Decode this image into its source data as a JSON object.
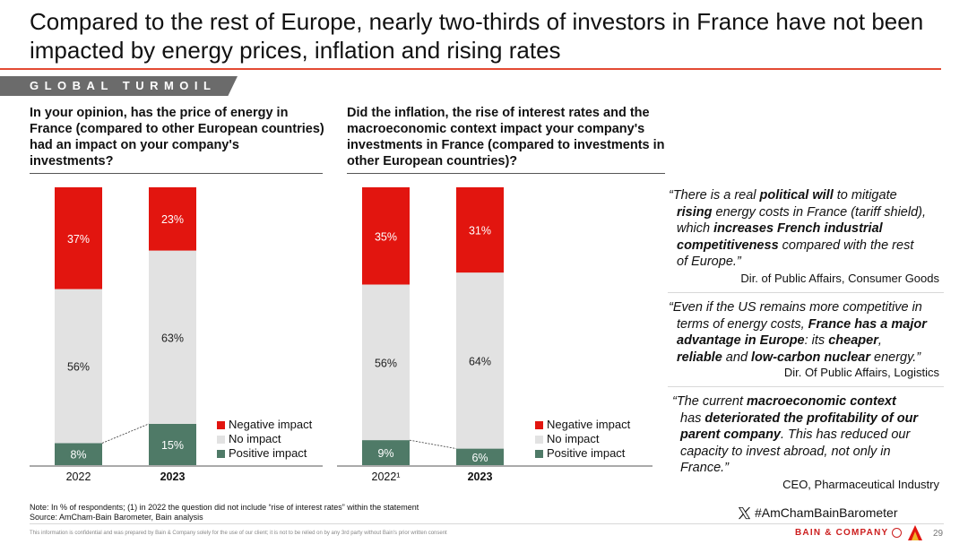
{
  "page": {
    "title": "Compared to the rest of Europe, nearly two-thirds of investors in France have not been impacted by energy prices, inflation and rising rates",
    "section_tag": "GLOBAL TURMOIL",
    "note": "Note: In % of respondents; (1) in 2022 the question did not include “rise of interest rates” within the statement",
    "source": "Source: AmCham-Bain Barometer, Bain analysis",
    "disclaimer": "This information is confidential and was prepared by Bain & Company solely for the use of our client; it is not to be relied on by any 3rd party without Bain's prior written consent",
    "hashtag": "#AmChamBainBarometer",
    "brand": "BAIN & COMPANY",
    "page_number": "29"
  },
  "colors": {
    "negative": "#e2150f",
    "no_impact": "#e2e2e2",
    "positive": "#4f7a67",
    "accent_rule": "#e34a33",
    "tag_bg": "#6b6b6b"
  },
  "chart_data": [
    {
      "type": "bar",
      "stacked": true,
      "title": "In your opinion, has the price of energy in France (compared to other European countries) had an impact on your company's investments?",
      "categories": [
        "2022",
        "2023"
      ],
      "categories_bold": [
        false,
        true
      ],
      "series": [
        {
          "name": "Positive impact",
          "values": [
            8,
            15
          ]
        },
        {
          "name": "No impact",
          "values": [
            56,
            63
          ]
        },
        {
          "name": "Negative impact",
          "values": [
            37,
            23
          ]
        }
      ],
      "value_suffix": "%",
      "legend_order": [
        "Negative impact",
        "No impact",
        "Positive impact"
      ],
      "legend_position": "right"
    },
    {
      "type": "bar",
      "stacked": true,
      "title": "Did the inflation, the rise of interest rates and the macroeconomic context impact your company's investments in France (compared to investments in other European countries)?",
      "categories": [
        "2022¹",
        "2023"
      ],
      "categories_bold": [
        false,
        true
      ],
      "series": [
        {
          "name": "Positive impact",
          "values": [
            9,
            6
          ]
        },
        {
          "name": "No impact",
          "values": [
            56,
            64
          ]
        },
        {
          "name": "Negative impact",
          "values": [
            35,
            31
          ]
        }
      ],
      "value_suffix": "%",
      "legend_order": [
        "Negative impact",
        "No impact",
        "Positive impact"
      ],
      "legend_position": "right"
    }
  ],
  "quotes": [
    {
      "lines": [
        [
          {
            "t": "“There is a real "
          },
          {
            "t": "political will",
            "b": true
          },
          {
            "t": " to mitigate"
          }
        ],
        [
          {
            "t": "rising",
            "b": true
          },
          {
            "t": " energy costs in France (tariff shield),"
          }
        ],
        [
          {
            "t": "which "
          },
          {
            "t": "increases French industrial",
            "b": true
          }
        ],
        [
          {
            "t": "competitiveness",
            "b": true
          },
          {
            "t": " compared with the rest"
          }
        ],
        [
          {
            "t": "of Europe.”"
          }
        ]
      ],
      "attribution": "Dir. of Public Affairs, Consumer Goods"
    },
    {
      "lines": [
        [
          {
            "t": "“Even if the US remains more competitive in"
          }
        ],
        [
          {
            "t": "terms of energy costs, "
          },
          {
            "t": "France has a major",
            "b": true
          }
        ],
        [
          {
            "t": "advantage in Europe",
            "b": true
          },
          {
            "t": ": its "
          },
          {
            "t": "cheaper",
            "b": true
          },
          {
            "t": ","
          }
        ],
        [
          {
            "t": "reliable",
            "b": true
          },
          {
            "t": " and "
          },
          {
            "t": "low-carbon nuclear",
            "b": true
          },
          {
            "t": " energy.”"
          }
        ]
      ],
      "attribution": "Dir. Of Public Affairs, Logistics"
    },
    {
      "lines": [
        [
          {
            "t": "“The current "
          },
          {
            "t": "macroeconomic context",
            "b": true
          }
        ],
        [
          {
            "t": "has "
          },
          {
            "t": "deteriorated the profitability of our",
            "b": true
          }
        ],
        [
          {
            "t": "parent company",
            "b": true
          },
          {
            "t": ". This has reduced our"
          }
        ],
        [
          {
            "t": "capacity to invest abroad, not only in"
          }
        ],
        [
          {
            "t": "France.”"
          }
        ]
      ],
      "attribution": "CEO, Pharmaceutical Industry"
    }
  ]
}
